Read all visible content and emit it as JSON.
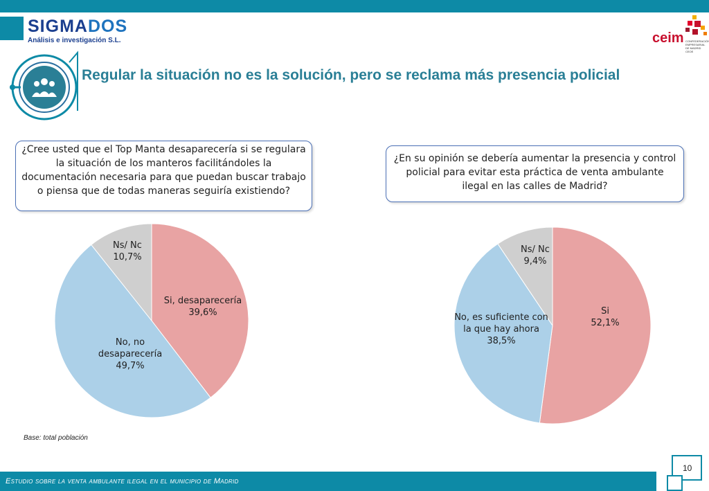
{
  "header": {
    "logo_left": {
      "name_part1": "SIGMA",
      "name_part2": "DOS",
      "subtitle": "Análisis e investigación S.L."
    },
    "logo_right": {
      "name": "ceim",
      "text": "CONFEDERACIÓN EMPRESARIAL DE MADRID CEOE"
    },
    "title": "Regular la situación no es la solución, pero se reclama más presencia policial"
  },
  "questions": {
    "q1": "¿Cree usted que el Top Manta desaparecería si se regulara la situación de los manteros  facilitándoles la documentación necesaria para que puedan buscar trabajo o piensa que de todas maneras seguiría existiendo?",
    "q2": "¿En su opinión se debería aumentar la presencia  y control policial para evitar esta práctica de venta ambulante ilegal en las calles de Madrid?"
  },
  "chart_data": [
    {
      "type": "pie",
      "title": "",
      "slices": [
        {
          "label": "Si, desaparecería",
          "value": 39.6,
          "value_text": "39,6%",
          "color": "#e8a3a3"
        },
        {
          "label": "No, no desaparecería",
          "value": 49.7,
          "value_text": "49,7%",
          "color": "#acd0e8"
        },
        {
          "label": "Ns/ Nc",
          "value": 10.7,
          "value_text": "10,7%",
          "color": "#cfcfcf"
        }
      ]
    },
    {
      "type": "pie",
      "title": "",
      "slices": [
        {
          "label": "Si",
          "value": 52.1,
          "value_text": "52,1%",
          "color": "#e8a3a3"
        },
        {
          "label": "No, es suficiente con la que hay ahora",
          "value": 38.5,
          "value_text": "38,5%",
          "color": "#acd0e8"
        },
        {
          "label": "Ns/ Nc",
          "value": 9.4,
          "value_text": "9,4%",
          "color": "#cfcfcf"
        }
      ]
    }
  ],
  "base_note": "Base: total población",
  "footer": {
    "text": "Estudio sobre la venta ambulante ilegal en el municipio de Madrid",
    "page": "10"
  },
  "colors": {
    "accent": "#0d8aa6",
    "title": "#2a7f96"
  }
}
